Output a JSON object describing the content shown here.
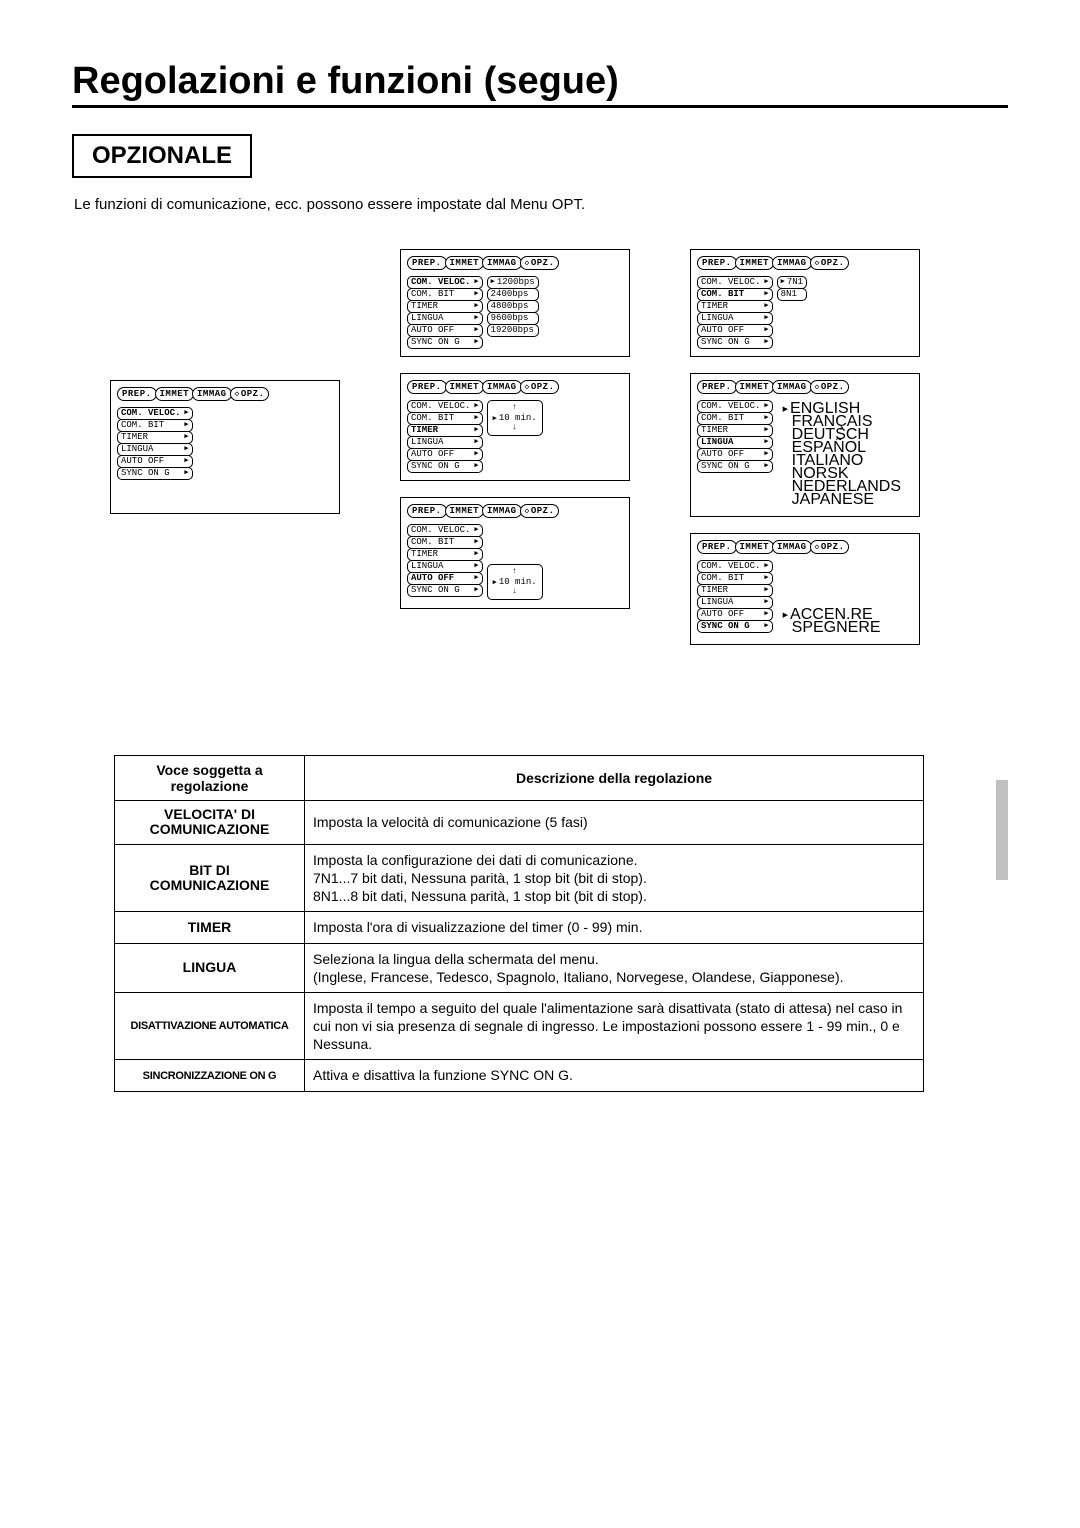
{
  "page_title": "Regolazioni e funzioni (segue)",
  "section_title": "OPZIONALE",
  "intro": "Le funzioni di comunicazione, ecc. possono essere impostate dal Menu OPT.",
  "tabs": [
    "PREP.",
    "IMMET",
    "IMMAG",
    "OPZ."
  ],
  "menu_items": [
    "COM. VELOC.",
    "COM. BIT",
    "TIMER",
    "LINGUA",
    "AUTO OFF",
    "SYNC ON G"
  ],
  "panels": {
    "com_veloc_options": [
      "1200bps",
      "2400bps",
      "4800bps",
      "9600bps",
      "19200bps"
    ],
    "com_bit_options": [
      "7N1",
      "8N1"
    ],
    "timer_spinner": "10 min.",
    "autooff_spinner": "10 min.",
    "lingua_options": [
      "ENGLISH",
      "FRANÇAIS",
      "DEUTSCH",
      "ESPAÑOL",
      "ITALIANO",
      "NORSK",
      "NEDERLANDS",
      "JAPANESE"
    ],
    "sync_options": [
      "ACCEN.RE",
      "SPEGNERE"
    ]
  },
  "table": {
    "headers": [
      "Voce soggetta a regolazione",
      "Descrizione della regolazione"
    ],
    "rows": [
      {
        "label_lines": [
          "VELOCITA' DI",
          "COMUNICAZIONE"
        ],
        "desc": "Imposta la velocità di comunicazione (5 fasi)"
      },
      {
        "label_lines": [
          "BIT DI",
          "COMUNICAZIONE"
        ],
        "desc": "Imposta la configurazione dei dati di comunicazione.\n7N1...7 bit dati, Nessuna parità, 1 stop bit (bit di stop).\n8N1...8 bit dati, Nessuna parità, 1 stop bit (bit di stop)."
      },
      {
        "label_lines": [
          "TIMER"
        ],
        "desc": "Imposta l'ora di visualizzazione del timer (0 - 99) min."
      },
      {
        "label_lines": [
          "LINGUA"
        ],
        "desc": "Seleziona la lingua della schermata del menu.\n(Inglese, Francese, Tedesco, Spagnolo, Italiano, Norvegese, Olandese, Giapponese)."
      },
      {
        "label_lines": [
          "DISATTIVAZIONE AUTOMATICA"
        ],
        "label_small": true,
        "desc": "Imposta il tempo a seguito del quale l'alimentazione sarà disattivata (stato di attesa) nel caso in cui non vi sia presenza di segnale di ingresso. Le impostazioni possono essere 1 - 99 min., 0 e Nessuna."
      },
      {
        "label_lines": [
          "SINCRONIZZAZIONE ON G"
        ],
        "label_small": true,
        "desc": "Attiva e disattiva la funzione SYNC ON G."
      }
    ]
  }
}
